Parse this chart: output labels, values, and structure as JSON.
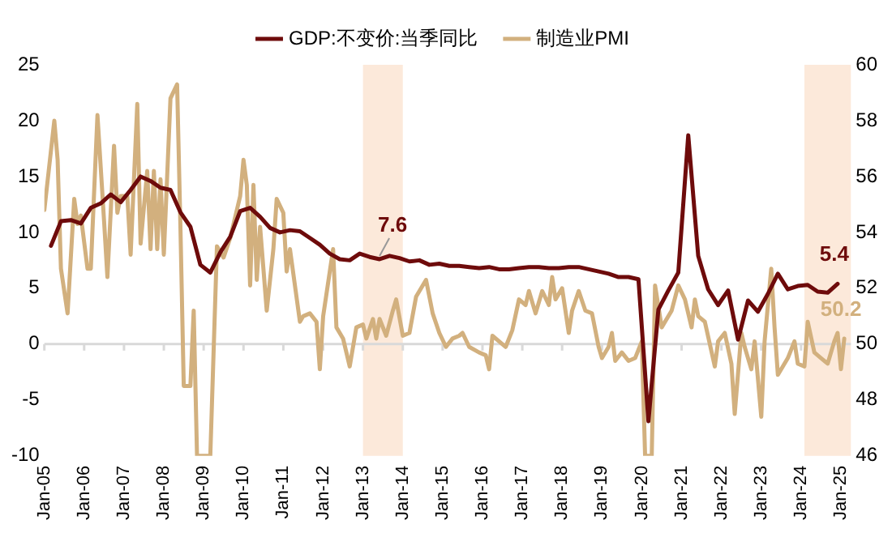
{
  "chart_data": {
    "type": "line",
    "legend": "top",
    "grid": false,
    "marker": "none",
    "line_style": "solid",
    "xlim": [
      "2005-01",
      "2025-04"
    ],
    "xticks": [
      {
        "value": "2005-01",
        "label": "Jan-05"
      },
      {
        "value": "2006-01",
        "label": "Jan-06"
      },
      {
        "value": "2007-01",
        "label": "Jan-07"
      },
      {
        "value": "2008-01",
        "label": "Jan-08"
      },
      {
        "value": "2009-01",
        "label": "Jan-09"
      },
      {
        "value": "2010-01",
        "label": "Jan-10"
      },
      {
        "value": "2011-01",
        "label": "Jan-11"
      },
      {
        "value": "2012-01",
        "label": "Jan-12"
      },
      {
        "value": "2013-01",
        "label": "Jan-13"
      },
      {
        "value": "2014-01",
        "label": "Jan-14"
      },
      {
        "value": "2015-01",
        "label": "Jan-15"
      },
      {
        "value": "2016-01",
        "label": "Jan-16"
      },
      {
        "value": "2017-01",
        "label": "Jan-17"
      },
      {
        "value": "2018-01",
        "label": "Jan-18"
      },
      {
        "value": "2019-01",
        "label": "Jan-19"
      },
      {
        "value": "2020-01",
        "label": "Jan-20"
      },
      {
        "value": "2021-01",
        "label": "Jan-21"
      },
      {
        "value": "2022-01",
        "label": "Jan-22"
      },
      {
        "value": "2023-01",
        "label": "Jan-23"
      },
      {
        "value": "2024-01",
        "label": "Jan-24"
      },
      {
        "value": "2025-01",
        "label": "Jan-25"
      }
    ],
    "ylim": [
      -10,
      25
    ],
    "yticks": [
      -10,
      -5,
      0,
      5,
      10,
      15,
      20,
      25
    ],
    "y2lim": [
      46,
      60
    ],
    "y2ticks": [
      46,
      48,
      50,
      52,
      54,
      56,
      58,
      60
    ],
    "ref_lines": [
      {
        "axis": "y",
        "value": 0,
        "color": "#d9d9d9"
      }
    ],
    "bands": [
      {
        "axis": "x",
        "from": "2013-01",
        "to": "2014-01",
        "color": "#fce9da"
      },
      {
        "axis": "x",
        "from": "2024-02",
        "to": "2025-04",
        "color": "#fce9da"
      }
    ],
    "series": [
      {
        "name": "GDP:不变价:当季同比",
        "color": "#6e0b0b",
        "axis": "y",
        "x": [
          "2005-03",
          "2005-06",
          "2005-09",
          "2005-12",
          "2006-03",
          "2006-06",
          "2006-09",
          "2006-12",
          "2007-03",
          "2007-06",
          "2007-09",
          "2007-12",
          "2008-03",
          "2008-06",
          "2008-09",
          "2008-12",
          "2009-03",
          "2009-06",
          "2009-09",
          "2009-12",
          "2010-03",
          "2010-06",
          "2010-09",
          "2010-12",
          "2011-03",
          "2011-06",
          "2011-09",
          "2011-12",
          "2012-03",
          "2012-06",
          "2012-09",
          "2012-12",
          "2013-03",
          "2013-06",
          "2013-09",
          "2013-12",
          "2014-03",
          "2014-06",
          "2014-09",
          "2014-12",
          "2015-03",
          "2015-06",
          "2015-09",
          "2015-12",
          "2016-03",
          "2016-06",
          "2016-09",
          "2016-12",
          "2017-03",
          "2017-06",
          "2017-09",
          "2017-12",
          "2018-03",
          "2018-06",
          "2018-09",
          "2018-12",
          "2019-03",
          "2019-06",
          "2019-09",
          "2019-12",
          "2020-03",
          "2020-06",
          "2020-09",
          "2020-12",
          "2021-03",
          "2021-06",
          "2021-09",
          "2021-12",
          "2022-03",
          "2022-06",
          "2022-09",
          "2022-12",
          "2023-03",
          "2023-06",
          "2023-09",
          "2023-12",
          "2024-03",
          "2024-06",
          "2024-09",
          "2024-12"
        ],
        "values": [
          8.8,
          11.0,
          11.1,
          10.8,
          12.2,
          12.6,
          13.4,
          12.7,
          13.8,
          15.0,
          14.6,
          14.0,
          13.8,
          11.8,
          10.5,
          7.1,
          6.4,
          8.2,
          9.6,
          11.9,
          12.2,
          11.4,
          10.4,
          10.0,
          10.2,
          10.1,
          9.5,
          8.9,
          8.1,
          7.6,
          7.5,
          8.1,
          7.8,
          7.6,
          7.9,
          7.7,
          7.4,
          7.5,
          7.1,
          7.2,
          7.0,
          7.0,
          6.9,
          6.8,
          6.9,
          6.7,
          6.7,
          6.8,
          6.9,
          6.9,
          6.8,
          6.8,
          6.9,
          6.9,
          6.7,
          6.5,
          6.3,
          6.0,
          6.0,
          5.8,
          -6.9,
          3.1,
          4.8,
          6.4,
          18.7,
          7.9,
          4.9,
          3.5,
          4.8,
          0.4,
          3.9,
          2.9,
          4.5,
          6.3,
          4.9,
          5.2,
          5.3,
          4.7,
          4.6,
          5.4
        ],
        "value_labels": [
          null,
          null,
          null,
          null,
          null,
          null,
          null,
          null,
          null,
          null,
          null,
          null,
          null,
          null,
          null,
          null,
          null,
          null,
          null,
          null,
          null,
          null,
          null,
          null,
          null,
          null,
          null,
          null,
          null,
          null,
          null,
          null,
          null,
          "7.6",
          null,
          null,
          null,
          null,
          null,
          null,
          null,
          null,
          null,
          null,
          null,
          null,
          null,
          null,
          null,
          null,
          null,
          null,
          null,
          null,
          null,
          null,
          null,
          null,
          null,
          null,
          null,
          null,
          null,
          null,
          null,
          null,
          null,
          null,
          null,
          null,
          null,
          null,
          null,
          null,
          null,
          null,
          null,
          null,
          null,
          "5.4"
        ]
      },
      {
        "name": "制造业PMI",
        "color": "#d2b07e",
        "axis": "y2",
        "x": [
          "2005-01",
          "2005-04",
          "2005-05",
          "2005-06",
          "2005-08",
          "2005-10",
          "2005-11",
          "2005-12",
          "2006-02",
          "2006-03",
          "2006-05",
          "2006-07",
          "2006-08",
          "2006-10",
          "2006-11",
          "2006-12",
          "2007-02",
          "2007-03",
          "2007-05",
          "2007-06",
          "2007-08",
          "2007-09",
          "2007-10",
          "2007-11",
          "2007-12",
          "2008-01",
          "2008-03",
          "2008-05",
          "2008-06",
          "2008-07",
          "2008-09",
          "2008-10",
          "2008-11",
          "2009-01",
          "2009-03",
          "2009-05",
          "2009-07",
          "2009-09",
          "2009-12",
          "2010-01",
          "2010-02",
          "2010-03",
          "2010-04",
          "2010-05",
          "2010-06",
          "2010-08",
          "2010-10",
          "2010-11",
          "2011-01",
          "2011-02",
          "2011-03",
          "2011-06",
          "2011-07",
          "2011-09",
          "2011-11",
          "2011-12",
          "2012-01",
          "2012-04",
          "2012-05",
          "2012-07",
          "2012-09",
          "2012-11",
          "2013-01",
          "2013-02",
          "2013-04",
          "2013-05",
          "2013-06",
          "2013-08",
          "2013-10",
          "2013-11",
          "2014-01",
          "2014-03",
          "2014-05",
          "2014-08",
          "2014-10",
          "2014-12",
          "2015-02",
          "2015-04",
          "2015-06",
          "2015-07",
          "2015-09",
          "2015-12",
          "2016-02",
          "2016-03",
          "2016-04",
          "2016-07",
          "2016-08",
          "2016-10",
          "2016-12",
          "2017-02",
          "2017-03",
          "2017-05",
          "2017-07",
          "2017-09",
          "2017-10",
          "2017-11",
          "2018-01",
          "2018-03",
          "2018-04",
          "2018-06",
          "2018-08",
          "2018-10",
          "2018-12",
          "2019-01",
          "2019-03",
          "2019-04",
          "2019-05",
          "2019-07",
          "2019-09",
          "2019-11",
          "2020-01",
          "2020-02",
          "2020-04",
          "2020-05",
          "2020-07",
          "2020-10",
          "2020-12",
          "2021-02",
          "2021-04",
          "2021-05",
          "2021-06",
          "2021-08",
          "2021-11",
          "2021-12",
          "2022-02",
          "2022-04",
          "2022-05",
          "2022-07",
          "2022-08",
          "2022-10",
          "2022-11",
          "2023-01",
          "2023-02",
          "2023-04",
          "2023-05",
          "2023-06",
          "2023-09",
          "2023-11",
          "2023-12",
          "2024-02",
          "2024-03",
          "2024-05",
          "2024-07",
          "2024-09",
          "2024-11",
          "2024-12",
          "2025-01",
          "2025-02"
        ],
        "values": [
          54.8,
          58.0,
          56.6,
          52.7,
          51.1,
          55.2,
          54.3,
          54.6,
          52.7,
          52.7,
          58.2,
          54.4,
          52.4,
          57.1,
          54.7,
          55.3,
          55.3,
          53.2,
          58.6,
          53.6,
          56.2,
          53.4,
          56.2,
          53.4,
          55.9,
          53.2,
          58.8,
          59.3,
          54.2,
          48.5,
          48.5,
          51.2,
          46,
          46,
          46,
          53.5,
          53.1,
          53.8,
          55.3,
          56.6,
          55.7,
          52.1,
          55.7,
          52.3,
          54.2,
          51.2,
          53.4,
          55.2,
          54.7,
          52.6,
          53.4,
          50.8,
          51.0,
          51.1,
          50.8,
          49.1,
          51.0,
          53.4,
          50.6,
          50.2,
          49.2,
          50.6,
          50.7,
          50.2,
          50.9,
          50.2,
          50.9,
          50.3,
          51.2,
          51.6,
          50.3,
          50.4,
          51.7,
          52.3,
          51.1,
          50.4,
          49.9,
          50.2,
          50.3,
          50.4,
          49.9,
          49.7,
          49.6,
          49.1,
          50.3,
          50.0,
          49.9,
          50.5,
          51.6,
          51.4,
          51.9,
          51.1,
          51.9,
          51.4,
          52.4,
          51.6,
          52.0,
          50.4,
          51.2,
          51.9,
          51.2,
          51.1,
          49.9,
          49.5,
          49.9,
          50.4,
          49.4,
          49.7,
          49.4,
          49.5,
          50.1,
          46,
          46,
          52.1,
          50.6,
          51.2,
          52.1,
          51.6,
          50.6,
          51.6,
          51.0,
          50.8,
          49.2,
          50.1,
          50.4,
          49.3,
          47.5,
          50.4,
          49.9,
          49.1,
          50.1,
          47.4,
          50.1,
          52.7,
          50.6,
          48.9,
          49.5,
          50.1,
          49.3,
          49.2,
          50.8,
          49.7,
          49.5,
          49.3,
          50.1,
          50.4,
          49.1,
          50.2
        ],
        "value_labels": [
          null,
          null,
          null,
          null,
          null,
          null,
          null,
          null,
          null,
          null,
          null,
          null,
          null,
          null,
          null,
          null,
          null,
          null,
          null,
          null,
          null,
          null,
          null,
          null,
          null,
          null,
          null,
          null,
          null,
          null,
          null,
          null,
          null,
          null,
          null,
          null,
          null,
          null,
          null,
          null,
          null,
          null,
          null,
          null,
          null,
          null,
          null,
          null,
          null,
          null,
          null,
          null,
          null,
          null,
          null,
          null,
          null,
          null,
          null,
          null,
          null,
          null,
          null,
          null,
          null,
          null,
          null,
          null,
          null,
          null,
          null,
          null,
          null,
          null,
          null,
          null,
          null,
          null,
          null,
          null,
          null,
          null,
          null,
          null,
          null,
          null,
          null,
          null,
          null,
          null,
          null,
          null,
          null,
          null,
          null,
          null,
          null,
          null,
          null,
          null,
          null,
          null,
          null,
          null,
          null,
          null,
          null,
          null,
          null,
          null,
          null,
          null,
          null,
          null,
          null,
          null,
          null,
          null,
          null,
          null,
          null,
          null,
          null,
          null,
          null,
          null,
          null,
          null,
          null,
          null,
          null,
          null,
          null,
          null,
          null,
          null,
          null,
          null,
          null,
          null,
          null,
          null,
          null,
          null,
          null,
          null,
          null,
          "50.2"
        ]
      }
    ]
  }
}
